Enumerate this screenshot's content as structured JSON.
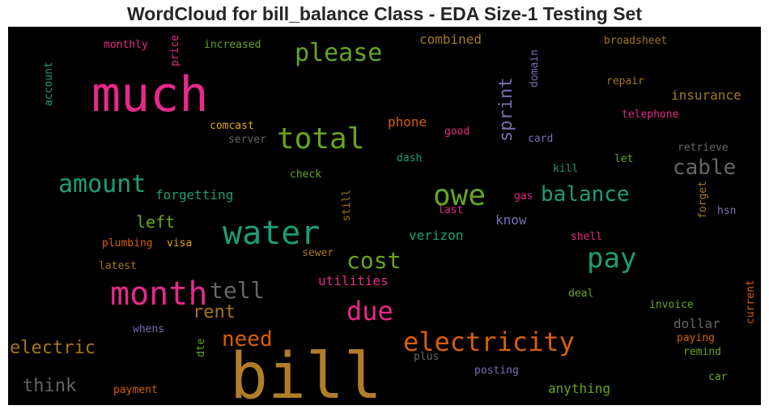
{
  "chart_data": {
    "type": "wordcloud",
    "title": "WordCloud for bill_balance Class - EDA Size-1 Testing Set",
    "background": "#000000",
    "words": [
      {
        "text": "bill",
        "color": "#b07d28"
      },
      {
        "text": "much",
        "color": "#e7298a"
      },
      {
        "text": "water",
        "color": "#1b9e77"
      },
      {
        "text": "month",
        "color": "#e7298a"
      },
      {
        "text": "total",
        "color": "#66a61e"
      },
      {
        "text": "owe",
        "color": "#66a61e"
      },
      {
        "text": "electricity",
        "color": "#d95f02"
      },
      {
        "text": "please",
        "color": "#66a61e"
      },
      {
        "text": "amount",
        "color": "#1b9e77"
      },
      {
        "text": "due",
        "color": "#e7298a"
      },
      {
        "text": "pay",
        "color": "#1b9e77"
      },
      {
        "text": "cost",
        "color": "#66a61e"
      },
      {
        "text": "balance",
        "color": "#1b9e77"
      },
      {
        "text": "cable",
        "color": "#666666"
      },
      {
        "text": "tell",
        "color": "#666666"
      },
      {
        "text": "need",
        "color": "#d95f02"
      },
      {
        "text": "electric",
        "color": "#a6761d"
      },
      {
        "text": "rent",
        "color": "#a6761d"
      },
      {
        "text": "think",
        "color": "#666666"
      },
      {
        "text": "sprint",
        "color": "#7570b3"
      },
      {
        "text": "left",
        "color": "#66a61e"
      },
      {
        "text": "forgetting",
        "color": "#1b9e77"
      },
      {
        "text": "insurance",
        "color": "#a6761d"
      },
      {
        "text": "anything",
        "color": "#66a61e"
      },
      {
        "text": "phone",
        "color": "#d95f02"
      },
      {
        "text": "utilities",
        "color": "#e7298a"
      },
      {
        "text": "verizon",
        "color": "#1b9e77"
      },
      {
        "text": "combined",
        "color": "#a6761d"
      },
      {
        "text": "dollar",
        "color": "#666666"
      },
      {
        "text": "know",
        "color": "#7570b3"
      },
      {
        "text": "monthly",
        "color": "#e7298a"
      },
      {
        "text": "price",
        "color": "#e7298a"
      },
      {
        "text": "increased",
        "color": "#66a61e"
      },
      {
        "text": "broadsheet",
        "color": "#a6761d"
      },
      {
        "text": "account",
        "color": "#1b9e77"
      },
      {
        "text": "domain",
        "color": "#7570b3"
      },
      {
        "text": "repair",
        "color": "#a6761d"
      },
      {
        "text": "telephone",
        "color": "#e7298a"
      },
      {
        "text": "comcast",
        "color": "#e6ab02"
      },
      {
        "text": "good",
        "color": "#e7298a"
      },
      {
        "text": "card",
        "color": "#7570b3"
      },
      {
        "text": "server",
        "color": "#666666"
      },
      {
        "text": "retrieve",
        "color": "#666666"
      },
      {
        "text": "dash",
        "color": "#1b9e77"
      },
      {
        "text": "let",
        "color": "#66a61e"
      },
      {
        "text": "check",
        "color": "#66a61e"
      },
      {
        "text": "kill",
        "color": "#1b9e77"
      },
      {
        "text": "gas",
        "color": "#e7298a"
      },
      {
        "text": "hsn",
        "color": "#7570b3"
      },
      {
        "text": "forget",
        "color": "#a6761d"
      },
      {
        "text": "still",
        "color": "#a6761d"
      },
      {
        "text": "last",
        "color": "#e7298a"
      },
      {
        "text": "plumbing",
        "color": "#d95f02"
      },
      {
        "text": "visa",
        "color": "#e6ab02"
      },
      {
        "text": "shell",
        "color": "#e7298a"
      },
      {
        "text": "sewer",
        "color": "#a6761d"
      },
      {
        "text": "latest",
        "color": "#a6761d"
      },
      {
        "text": "deal",
        "color": "#66a61e"
      },
      {
        "text": "invoice",
        "color": "#66a61e"
      },
      {
        "text": "current",
        "color": "#d95f02"
      },
      {
        "text": "whens",
        "color": "#7570b3"
      },
      {
        "text": "paying",
        "color": "#d95f02"
      },
      {
        "text": "remind",
        "color": "#66a61e"
      },
      {
        "text": "plus",
        "color": "#666666"
      },
      {
        "text": "dte",
        "color": "#66a61e"
      },
      {
        "text": "posting",
        "color": "#7570b3"
      },
      {
        "text": "car",
        "color": "#66a61e"
      },
      {
        "text": "payment",
        "color": "#d95f02"
      }
    ]
  }
}
